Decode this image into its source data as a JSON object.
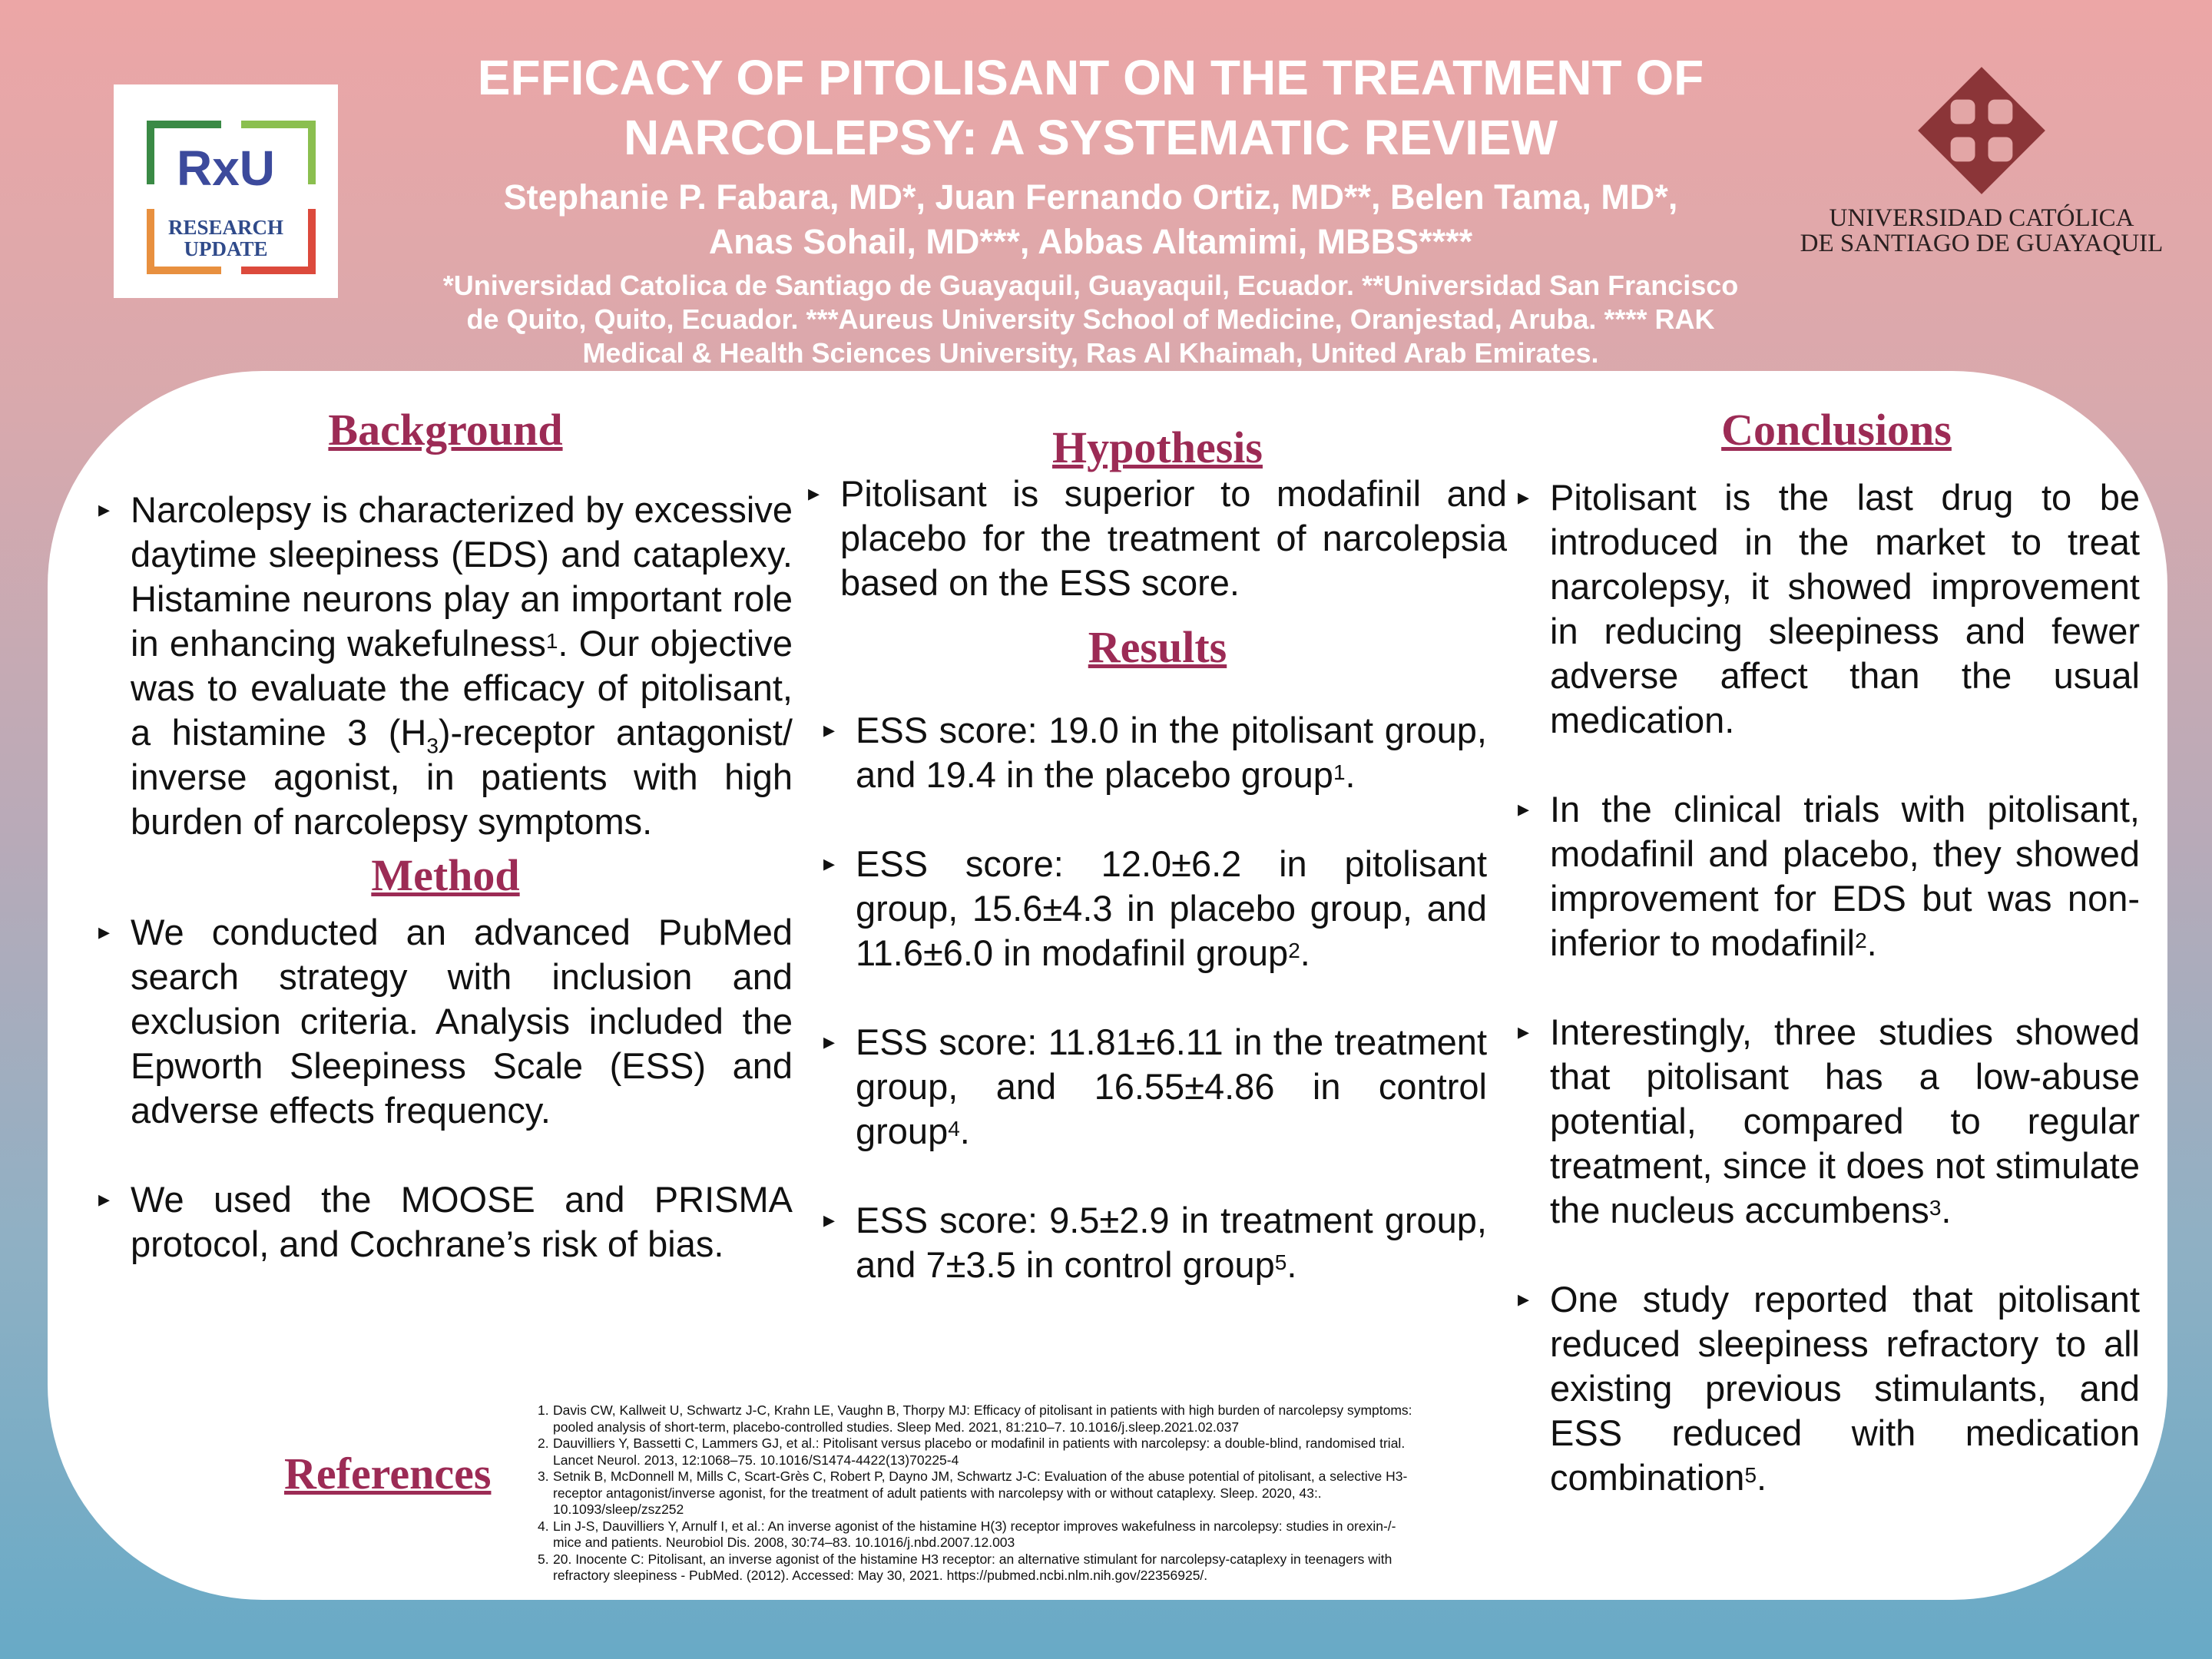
{
  "header": {
    "title_1": "EFFICACY OF PITOLISANT ON THE TREATMENT OF",
    "title_2": "NARCOLEPSY: A SYSTEMATIC REVIEW",
    "authors_1": "Stephanie P. Fabara, MD*, Juan Fernando Ortiz, MD**, Belen Tama, MD*,",
    "authors_2": "Anas Sohail, MD***, Abbas Altamimi, MBBS****",
    "aff_1": "*Universidad Catolica de Santiago de Guayaquil, Guayaquil, Ecuador. **Universidad San Francisco",
    "aff_2": "de Quito, Quito, Ecuador. ***Aureus University School of Medicine, Oranjestad, Aruba. **** RAK",
    "aff_3": "Medical & Health Sciences University, Ras Al Khaimah, United Arab Emirates."
  },
  "logo_left": {
    "mark": "RxU",
    "line1": "RESEARCH",
    "line2": "UPDATE"
  },
  "logo_right": {
    "line1": "UNIVERSIDAD CATÓLICA",
    "line2": "DE SANTIAGO DE GUAYAQUIL"
  },
  "background": {
    "heading": "Background",
    "p1": "Narcolepsy is characterized by excessive daytime sleepiness (EDS) and cataplexy. Histamine neurons play an important role in enhancing wakefulness",
    "sup1": "1",
    "p2": ". Our objective was to evaluate the efficacy of pitolisant, a histamine 3 (H",
    "sub": "3",
    "p3": ")-receptor antagonist/ inverse agonist, in patients with high burden of narcolepsy symptoms."
  },
  "method": {
    "heading": "Method",
    "items": [
      "We conducted an advanced PubMed search strategy with inclusion and exclusion criteria. Analysis included the Epworth Sleepiness Scale (ESS) and adverse effects frequency.",
      "We used the MOOSE and PRISMA protocol, and Cochrane’s risk of bias."
    ]
  },
  "hypothesis": {
    "heading": "Hypothesis",
    "text": "Pitolisant is superior to modafinil and placebo for the treatment of narcolepsia based on the ESS score."
  },
  "results": {
    "heading": "Results",
    "items": [
      {
        "text": "ESS score: 19.0 in the pitolisant group, and 19.4 in the placebo group",
        "sup": "1",
        "end": "."
      },
      {
        "text": "ESS score: 12.0±6.2 in pitolisant group, 15.6±4.3 in placebo group, and 11.6±6.0 in modafinil group",
        "sup": "2",
        "end": "."
      },
      {
        "text": "ESS score: 11.81±6.11 in the treatment group, and 16.55±4.86 in control group",
        "sup": "4",
        "end": "."
      },
      {
        "text": "ESS score: 9.5±2.9 in treatment group, and 7±3.5 in control group",
        "sup": "5",
        "end": "."
      }
    ]
  },
  "conclusions": {
    "heading": "Conclusions",
    "items": [
      {
        "text": "Pitolisant is the last drug to be introduced in the market to treat narcolepsy, it showed improvement in reducing sleepiness and fewer adverse affect than the usual medication.",
        "sup": "",
        "end": ""
      },
      {
        "text": "In the clinical trials with pitolisant, modafinil and placebo, they showed improvement for EDS but was non-inferior to modafinil",
        "sup": "2",
        "end": "."
      },
      {
        "text": "Interestingly, three studies showed that pitolisant has a low-abuse potential, compared to regular treatment, since it does not stimulate the nucleus accumbens",
        "sup": "3",
        "end": "."
      },
      {
        "text": "One study reported that pitolisant reduced sleepiness refractory to all existing previous stimulants, and ESS reduced with medication combination",
        "sup": "5",
        "end": "."
      }
    ]
  },
  "references": {
    "heading": "References",
    "items": [
      {
        "n": "1.",
        "text": "Davis CW, Kallweit U, Schwartz J-C, Krahn LE, Vaughn B, Thorpy MJ: Efficacy of pitolisant in patients with high burden of narcolepsy symptoms: pooled analysis of short-term, placebo-controlled studies. Sleep Med. 2021, 81:210–7. 10.1016/j.sleep.2021.02.037"
      },
      {
        "n": "2.",
        "text": "Dauvilliers Y, Bassetti C, Lammers GJ, et al.: Pitolisant versus placebo or modafinil in patients with narcolepsy: a double-blind, randomised trial. Lancet Neurol. 2013, 12:1068–75. 10.1016/S1474-4422(13)70225-4"
      },
      {
        "n": "3.",
        "text": "Setnik B, McDonnell M, Mills C, Scart-Grès C, Robert P, Dayno JM, Schwartz J-C: Evaluation of the abuse potential of pitolisant, a selective H3-receptor antagonist/inverse agonist, for the treatment of adult patients with narcolepsy with or without cataplexy. Sleep. 2020, 43:. 10.1093/sleep/zsz252"
      },
      {
        "n": "4.",
        "text": "Lin J-S, Dauvilliers Y, Arnulf I, et al.: An inverse agonist of the histamine H(3) receptor improves wakefulness in narcolepsy: studies in orexin-/- mice and patients. Neurobiol Dis. 2008, 30:74–83. 10.1016/j.nbd.2007.12.003"
      },
      {
        "n": "5.",
        "text": "20.    Inocente C: Pitolisant, an inverse agonist of the histamine H3 receptor: an alternative stimulant for narcolepsy-cataplexy in teenagers with refractory sleepiness - PubMed. (2012). Accessed: May 30, 2021. https://pubmed.ncbi.nlm.nih.gov/22356925/."
      }
    ]
  }
}
